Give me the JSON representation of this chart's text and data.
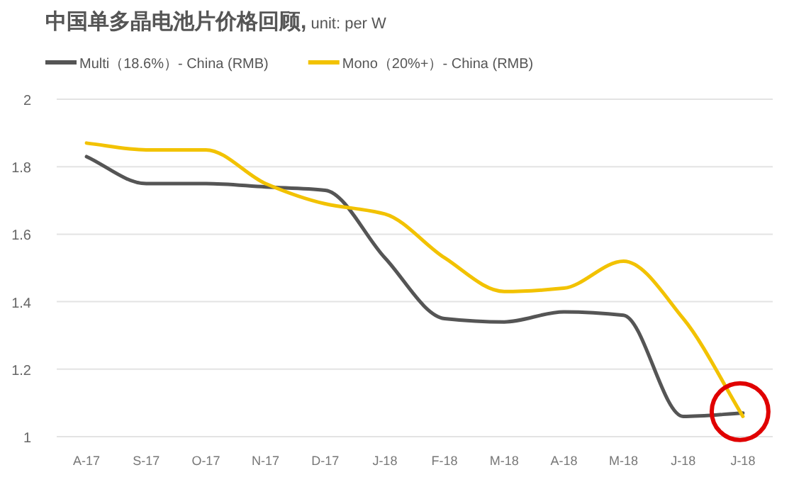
{
  "chart_data": {
    "type": "line",
    "title": "中国单多晶电池片价格回顾, unit: per W",
    "categories": [
      "A-17",
      "S-17",
      "O-17",
      "N-17",
      "D-17",
      "J-18",
      "F-18",
      "M-18",
      "A-18",
      "M-18",
      "J-18",
      "J-18"
    ],
    "series": [
      {
        "name": "Multi（18.6%）- China (RMB)",
        "color": "#555555",
        "values": [
          1.83,
          1.75,
          1.75,
          1.74,
          1.73,
          1.53,
          1.35,
          1.34,
          1.37,
          1.36,
          1.06,
          1.07
        ]
      },
      {
        "name": "Mono（20%+）- China (RMB)",
        "color": "#f2c200",
        "values": [
          1.87,
          1.85,
          1.85,
          1.75,
          1.69,
          1.66,
          1.53,
          1.43,
          1.44,
          1.52,
          1.35,
          1.06
        ]
      }
    ],
    "ylim": [
      1,
      2
    ],
    "yticks": [
      1,
      1.2,
      1.4,
      1.6,
      1.8,
      2
    ],
    "grid": "y",
    "legend": "top",
    "marker": "none",
    "line_style": "solid"
  }
}
